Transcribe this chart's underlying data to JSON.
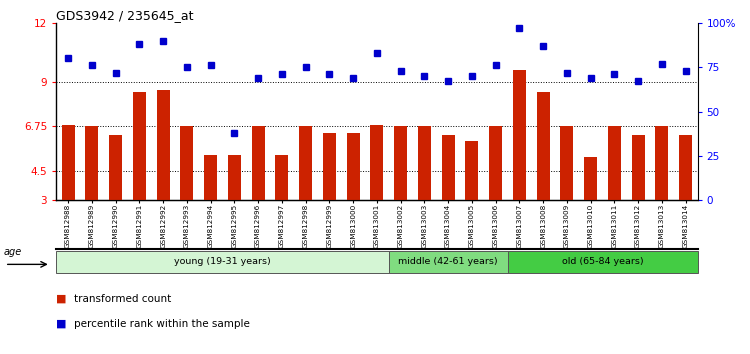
{
  "title": "GDS3942 / 235645_at",
  "samples": [
    "GSM812988",
    "GSM812989",
    "GSM812990",
    "GSM812991",
    "GSM812992",
    "GSM812993",
    "GSM812994",
    "GSM812995",
    "GSM812996",
    "GSM812997",
    "GSM812998",
    "GSM812999",
    "GSM813000",
    "GSM813001",
    "GSM813002",
    "GSM813003",
    "GSM813004",
    "GSM813005",
    "GSM813006",
    "GSM813007",
    "GSM813008",
    "GSM813009",
    "GSM813010",
    "GSM813011",
    "GSM813012",
    "GSM813013",
    "GSM813014"
  ],
  "bar_values": [
    6.8,
    6.75,
    6.3,
    8.5,
    8.6,
    6.75,
    5.3,
    5.3,
    6.75,
    5.3,
    6.75,
    6.4,
    6.4,
    6.8,
    6.75,
    6.75,
    6.3,
    6.0,
    6.75,
    9.6,
    8.5,
    6.75,
    5.2,
    6.75,
    6.3,
    6.75,
    6.3
  ],
  "dot_pct": [
    80,
    76,
    72,
    88,
    90,
    75,
    76,
    38,
    69,
    71,
    75,
    71,
    69,
    83,
    73,
    70,
    67,
    70,
    76,
    97,
    87,
    72,
    69,
    71,
    67,
    77,
    73
  ],
  "groups": [
    {
      "label": "young (19-31 years)",
      "start": 0,
      "end": 14,
      "color": "#d4f5d4"
    },
    {
      "label": "middle (42-61 years)",
      "start": 14,
      "end": 19,
      "color": "#80dc80"
    },
    {
      "label": "old (65-84 years)",
      "start": 19,
      "end": 27,
      "color": "#44cc44"
    }
  ],
  "bar_color": "#cc2200",
  "dot_color": "#0000cc",
  "ylim_left": [
    3,
    12
  ],
  "ylim_right": [
    0,
    100
  ],
  "yticks_left": [
    3,
    4.5,
    6.75,
    9,
    12
  ],
  "ytick_labels_left": [
    "3",
    "4.5",
    "6.75",
    "9",
    "12"
  ],
  "yticks_right": [
    0,
    25,
    50,
    75,
    100
  ],
  "ytick_labels_right": [
    "0",
    "25",
    "50",
    "75",
    "100%"
  ],
  "hlines": [
    4.5,
    6.75,
    9
  ],
  "legend_items": [
    {
      "color": "#cc2200",
      "label": "transformed count"
    },
    {
      "color": "#0000cc",
      "label": "percentile rank within the sample"
    }
  ],
  "age_label": "age"
}
